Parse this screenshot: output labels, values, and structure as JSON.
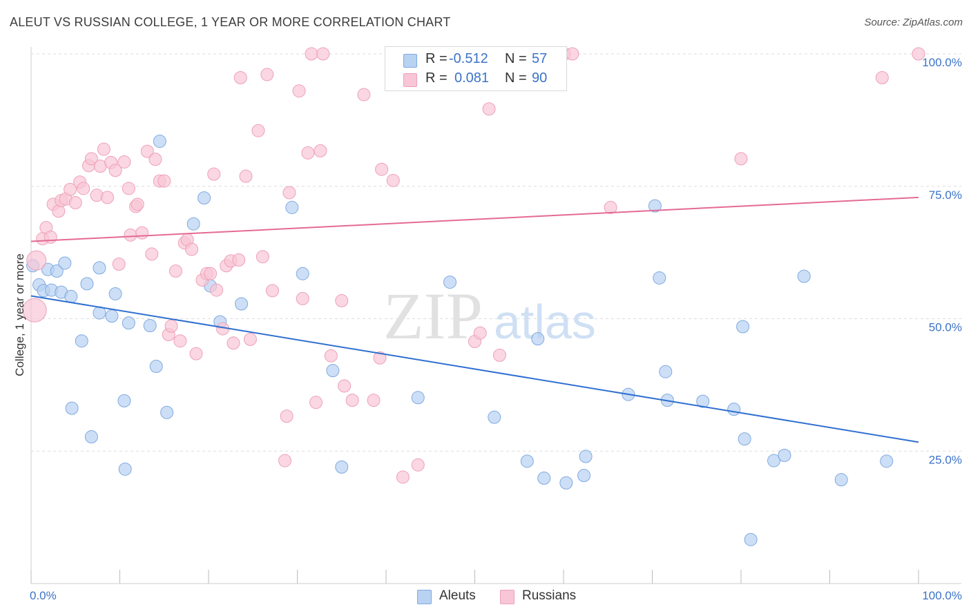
{
  "title": "ALEUT VS RUSSIAN COLLEGE, 1 YEAR OR MORE CORRELATION CHART",
  "source": "Source: ZipAtlas.com",
  "watermark": {
    "zip": "ZIP",
    "atlas": "atlas"
  },
  "stats": {
    "aleuts": {
      "r_label": "R =",
      "r_value": "-0.512",
      "n_label": "N =",
      "n_value": "57"
    },
    "russians": {
      "r_label": "R =",
      "r_value": "0.081",
      "n_label": "N =",
      "n_value": "90"
    }
  },
  "colors": {
    "aleuts_fill": "#b8d2f2",
    "aleuts_stroke": "#7fa9e0",
    "aleuts_line": "#2f6fd0",
    "russians_fill": "#f8c6d6",
    "russians_stroke": "#eea0b8",
    "russians_line": "#e46a94",
    "tick_label": "#3b73c8",
    "grid": "#dcdcdc"
  },
  "chart_data": {
    "type": "scatter",
    "title": "ALEUT VS RUSSIAN COLLEGE, 1 YEAR OR MORE CORRELATION CHART",
    "xlabel": "",
    "ylabel": "College, 1 year or more",
    "xlim": [
      0,
      100
    ],
    "ylim": [
      0,
      100
    ],
    "x_tick_labels": [
      "0.0%",
      "100.0%"
    ],
    "y_ticks": [
      25,
      50,
      75,
      100
    ],
    "y_tick_labels": [
      "25.0%",
      "50.0%",
      "75.0%",
      "100.0%"
    ],
    "grid": true,
    "legend_position": "bottom-center",
    "series": [
      {
        "name": "Aleuts",
        "r": -0.512,
        "n": 57,
        "trend": {
          "x": [
            0,
            100
          ],
          "y": [
            54.3,
            26.7
          ]
        },
        "points": [
          [
            0.2,
            60.0
          ],
          [
            0.9,
            56.4
          ],
          [
            1.4,
            55.3
          ],
          [
            1.9,
            59.3
          ],
          [
            2.3,
            55.4
          ],
          [
            2.9,
            59.0
          ],
          [
            3.4,
            55.0
          ],
          [
            3.8,
            60.5
          ],
          [
            4.5,
            54.2
          ],
          [
            5.7,
            45.8
          ],
          [
            4.6,
            33.1
          ],
          [
            6.3,
            56.6
          ],
          [
            6.8,
            27.7
          ],
          [
            7.7,
            51.1
          ],
          [
            7.7,
            59.6
          ],
          [
            9.1,
            50.5
          ],
          [
            9.5,
            54.7
          ],
          [
            10.5,
            34.5
          ],
          [
            10.6,
            21.6
          ],
          [
            11.0,
            49.2
          ],
          [
            13.4,
            48.7
          ],
          [
            14.1,
            41.0
          ],
          [
            14.5,
            83.5
          ],
          [
            15.3,
            32.3
          ],
          [
            18.3,
            67.9
          ],
          [
            19.5,
            72.8
          ],
          [
            20.2,
            56.2
          ],
          [
            21.3,
            49.4
          ],
          [
            23.7,
            52.8
          ],
          [
            29.4,
            71.0
          ],
          [
            30.6,
            58.5
          ],
          [
            34.0,
            40.2
          ],
          [
            35.0,
            22.0
          ],
          [
            43.6,
            35.1
          ],
          [
            47.2,
            56.9
          ],
          [
            52.2,
            31.4
          ],
          [
            55.9,
            23.1
          ],
          [
            57.1,
            46.2
          ],
          [
            57.8,
            19.9
          ],
          [
            60.3,
            19.0
          ],
          [
            62.3,
            20.4
          ],
          [
            62.5,
            24.0
          ],
          [
            67.3,
            35.7
          ],
          [
            70.3,
            71.3
          ],
          [
            70.8,
            57.7
          ],
          [
            71.5,
            40.0
          ],
          [
            71.7,
            34.6
          ],
          [
            75.7,
            34.4
          ],
          [
            79.2,
            32.9
          ],
          [
            80.2,
            48.5
          ],
          [
            80.4,
            27.3
          ],
          [
            81.1,
            8.3
          ],
          [
            83.7,
            23.2
          ],
          [
            84.9,
            24.2
          ],
          [
            87.1,
            58.0
          ],
          [
            91.3,
            19.6
          ],
          [
            96.4,
            23.1
          ]
        ]
      },
      {
        "name": "Russians",
        "r": 0.081,
        "n": 90,
        "trend": {
          "x": [
            0,
            100
          ],
          "y": [
            64.6,
            72.9
          ]
        },
        "points": [
          [
            0.4,
            51.6
          ],
          [
            0.6,
            61.0
          ],
          [
            1.3,
            65.1
          ],
          [
            1.7,
            67.2
          ],
          [
            2.2,
            65.4
          ],
          [
            2.5,
            71.6
          ],
          [
            3.1,
            70.3
          ],
          [
            3.4,
            72.3
          ],
          [
            3.9,
            72.6
          ],
          [
            4.4,
            74.4
          ],
          [
            5.0,
            71.9
          ],
          [
            5.5,
            75.8
          ],
          [
            5.9,
            74.6
          ],
          [
            6.5,
            78.9
          ],
          [
            6.8,
            80.2
          ],
          [
            7.4,
            73.3
          ],
          [
            7.8,
            78.8
          ],
          [
            8.2,
            82.0
          ],
          [
            8.6,
            72.9
          ],
          [
            9.0,
            79.5
          ],
          [
            9.5,
            78.0
          ],
          [
            9.9,
            60.3
          ],
          [
            10.5,
            79.6
          ],
          [
            11.0,
            74.6
          ],
          [
            11.2,
            65.8
          ],
          [
            11.8,
            71.2
          ],
          [
            12.0,
            71.6
          ],
          [
            12.5,
            66.2
          ],
          [
            13.1,
            81.6
          ],
          [
            13.6,
            62.2
          ],
          [
            14.0,
            80.1
          ],
          [
            14.5,
            76.0
          ],
          [
            15.0,
            76.0
          ],
          [
            15.5,
            47.0
          ],
          [
            15.8,
            48.6
          ],
          [
            16.3,
            59.0
          ],
          [
            16.8,
            45.8
          ],
          [
            17.3,
            64.3
          ],
          [
            17.6,
            64.9
          ],
          [
            18.1,
            63.1
          ],
          [
            18.6,
            43.4
          ],
          [
            19.3,
            57.3
          ],
          [
            19.8,
            58.5
          ],
          [
            20.2,
            58.5
          ],
          [
            20.6,
            77.3
          ],
          [
            20.9,
            55.4
          ],
          [
            21.6,
            48.1
          ],
          [
            22.0,
            60.0
          ],
          [
            22.5,
            60.9
          ],
          [
            22.8,
            45.4
          ],
          [
            23.4,
            61.1
          ],
          [
            24.2,
            76.9
          ],
          [
            24.7,
            46.1
          ],
          [
            25.6,
            85.5
          ],
          [
            26.1,
            61.7
          ],
          [
            26.6,
            96.1
          ],
          [
            27.2,
            55.3
          ],
          [
            28.6,
            23.2
          ],
          [
            28.8,
            31.6
          ],
          [
            29.1,
            73.8
          ],
          [
            30.2,
            93.0
          ],
          [
            30.6,
            53.8
          ],
          [
            31.2,
            81.3
          ],
          [
            31.6,
            100.0
          ],
          [
            32.1,
            34.2
          ],
          [
            32.6,
            81.7
          ],
          [
            32.9,
            100.0
          ],
          [
            33.8,
            43.0
          ],
          [
            35.0,
            53.4
          ],
          [
            35.3,
            37.3
          ],
          [
            36.2,
            34.6
          ],
          [
            37.5,
            92.3
          ],
          [
            38.6,
            34.6
          ],
          [
            39.3,
            42.6
          ],
          [
            39.5,
            78.2
          ],
          [
            40.8,
            76.1
          ],
          [
            41.9,
            20.1
          ],
          [
            43.6,
            22.4
          ],
          [
            47.3,
            100.0
          ],
          [
            50.0,
            45.7
          ],
          [
            50.6,
            47.3
          ],
          [
            51.6,
            89.6
          ],
          [
            52.8,
            43.1
          ],
          [
            60.1,
            100.0
          ],
          [
            61.0,
            100.0
          ],
          [
            65.3,
            71.0
          ],
          [
            80.0,
            80.2
          ],
          [
            95.9,
            95.5
          ],
          [
            100.0,
            100.0
          ],
          [
            23.6,
            95.5
          ]
        ]
      }
    ]
  },
  "legend": {
    "aleuts": "Aleuts",
    "russians": "Russians"
  }
}
